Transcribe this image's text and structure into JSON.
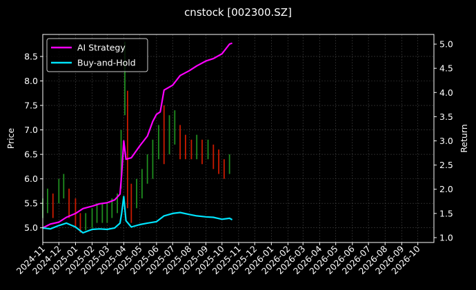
{
  "chart_data": {
    "type": "line",
    "title": "cnstock [002300.SZ]",
    "ylabel_left": "Price",
    "ylabel_right": "Return",
    "grid": true,
    "legend_placement": "top-left",
    "colors": {
      "background": "#000000",
      "ai_strategy": "#ff00ff",
      "buy_and_hold": "#00e5ff",
      "candle_up": "#1f8f1f",
      "candle_down": "#cc1a00",
      "grid": "#444444",
      "text": "#ffffff"
    },
    "left_axis": {
      "ylim": [
        4.7,
        8.95
      ],
      "ticks": [
        "5.0",
        "5.5",
        "6.0",
        "6.5",
        "7.0",
        "7.5",
        "8.0",
        "8.5"
      ]
    },
    "right_axis": {
      "ylim": [
        0.9,
        5.2
      ],
      "ticks": [
        "1.0",
        "1.5",
        "2.0",
        "2.5",
        "3.0",
        "3.5",
        "4.0",
        "4.5",
        "5.0"
      ]
    },
    "x_axis": {
      "start": "2024-11-01",
      "end": "2026-10-31",
      "ticks": [
        "2024-11",
        "2024-12",
        "2025-01",
        "2025-02",
        "2025-03",
        "2025-04",
        "2025-05",
        "2025-06",
        "2025-07",
        "2025-08",
        "2025-09",
        "2025-10",
        "2025-11",
        "2025-12",
        "2026-01",
        "2026-02",
        "2026-03",
        "2026-04",
        "2026-05",
        "2026-06",
        "2026-07",
        "2026-08",
        "2026-09",
        "2026-10"
      ]
    },
    "series": [
      {
        "name": "AI Strategy",
        "axis": "right",
        "x": [
          "2024-11-01",
          "2024-11-15",
          "2024-12-01",
          "2024-12-15",
          "2025-01-01",
          "2025-01-15",
          "2025-02-01",
          "2025-02-15",
          "2025-03-01",
          "2025-03-15",
          "2025-03-25",
          "2025-03-28",
          "2025-04-01",
          "2025-04-05",
          "2025-04-15",
          "2025-05-01",
          "2025-05-15",
          "2025-05-25",
          "2025-06-01",
          "2025-06-08",
          "2025-06-15",
          "2025-07-01",
          "2025-07-08",
          "2025-07-15",
          "2025-08-01",
          "2025-08-15",
          "2025-09-01",
          "2025-09-15",
          "2025-10-01",
          "2025-10-15",
          "2025-10-20"
        ],
        "values": [
          1.2,
          1.28,
          1.32,
          1.42,
          1.5,
          1.6,
          1.65,
          1.7,
          1.72,
          1.78,
          1.9,
          2.3,
          3.0,
          2.62,
          2.65,
          2.9,
          3.1,
          3.4,
          3.55,
          3.6,
          4.05,
          4.15,
          4.25,
          4.35,
          4.45,
          4.55,
          4.65,
          4.7,
          4.8,
          5.0,
          5.02
        ]
      },
      {
        "name": "Buy-and-Hold",
        "axis": "right",
        "x": [
          "2024-11-01",
          "2024-11-15",
          "2024-12-01",
          "2024-12-15",
          "2025-01-01",
          "2025-01-15",
          "2025-02-01",
          "2025-02-15",
          "2025-03-01",
          "2025-03-15",
          "2025-03-25",
          "2025-03-28",
          "2025-04-01",
          "2025-04-05",
          "2025-04-15",
          "2025-05-01",
          "2025-05-15",
          "2025-06-01",
          "2025-06-15",
          "2025-07-01",
          "2025-07-15",
          "2025-08-01",
          "2025-08-15",
          "2025-09-01",
          "2025-09-15",
          "2025-10-01",
          "2025-10-15",
          "2025-10-20"
        ],
        "values": [
          1.2,
          1.18,
          1.25,
          1.3,
          1.22,
          1.1,
          1.17,
          1.18,
          1.17,
          1.2,
          1.3,
          1.5,
          1.85,
          1.35,
          1.22,
          1.27,
          1.3,
          1.33,
          1.45,
          1.5,
          1.52,
          1.48,
          1.45,
          1.43,
          1.42,
          1.38,
          1.4,
          1.37
        ]
      }
    ],
    "candles": {
      "axis": "left",
      "x": [
        "2024-11-01",
        "2024-11-10",
        "2024-11-20",
        "2024-12-01",
        "2024-12-10",
        "2024-12-20",
        "2025-01-01",
        "2025-01-10",
        "2025-01-20",
        "2025-02-01",
        "2025-02-10",
        "2025-02-20",
        "2025-03-01",
        "2025-03-10",
        "2025-03-20",
        "2025-03-27",
        "2025-04-03",
        "2025-04-08",
        "2025-04-15",
        "2025-04-25",
        "2025-05-05",
        "2025-05-15",
        "2025-05-25",
        "2025-06-05",
        "2025-06-15",
        "2025-06-25",
        "2025-07-05",
        "2025-07-15",
        "2025-07-25",
        "2025-08-05",
        "2025-08-15",
        "2025-08-25",
        "2025-09-05",
        "2025-09-15",
        "2025-09-25",
        "2025-10-05",
        "2025-10-15"
      ],
      "close": [
        5.4,
        5.6,
        5.4,
        5.8,
        5.9,
        5.5,
        5.3,
        5.0,
        5.1,
        5.2,
        5.3,
        5.3,
        5.3,
        5.4,
        5.5,
        6.6,
        8.4,
        6.5,
        5.5,
        5.7,
        5.9,
        6.2,
        6.5,
        6.8,
        6.6,
        7.0,
        7.1,
        6.9,
        6.7,
        6.6,
        6.7,
        6.6,
        6.6,
        6.5,
        6.4,
        6.1,
        6.4
      ],
      "low": [
        5.2,
        5.3,
        5.2,
        5.5,
        5.6,
        5.2,
        5.0,
        4.9,
        4.95,
        5.0,
        5.1,
        5.1,
        5.1,
        5.2,
        5.3,
        5.8,
        7.3,
        5.4,
        5.1,
        5.4,
        5.6,
        5.9,
        6.0,
        6.4,
        6.3,
        6.5,
        6.7,
        6.4,
        6.4,
        6.4,
        6.4,
        6.3,
        6.4,
        6.2,
        6.1,
        6.0,
        6.1
      ],
      "high": [
        5.6,
        5.8,
        5.7,
        6.0,
        6.1,
        5.8,
        5.6,
        5.3,
        5.3,
        5.4,
        5.5,
        5.5,
        5.5,
        5.6,
        5.7,
        7.0,
        8.8,
        7.8,
        5.9,
        6.0,
        6.2,
        6.5,
        6.8,
        7.1,
        7.5,
        7.3,
        7.4,
        7.1,
        6.9,
        6.8,
        6.9,
        6.8,
        6.8,
        6.7,
        6.6,
        6.4,
        6.5
      ]
    }
  }
}
